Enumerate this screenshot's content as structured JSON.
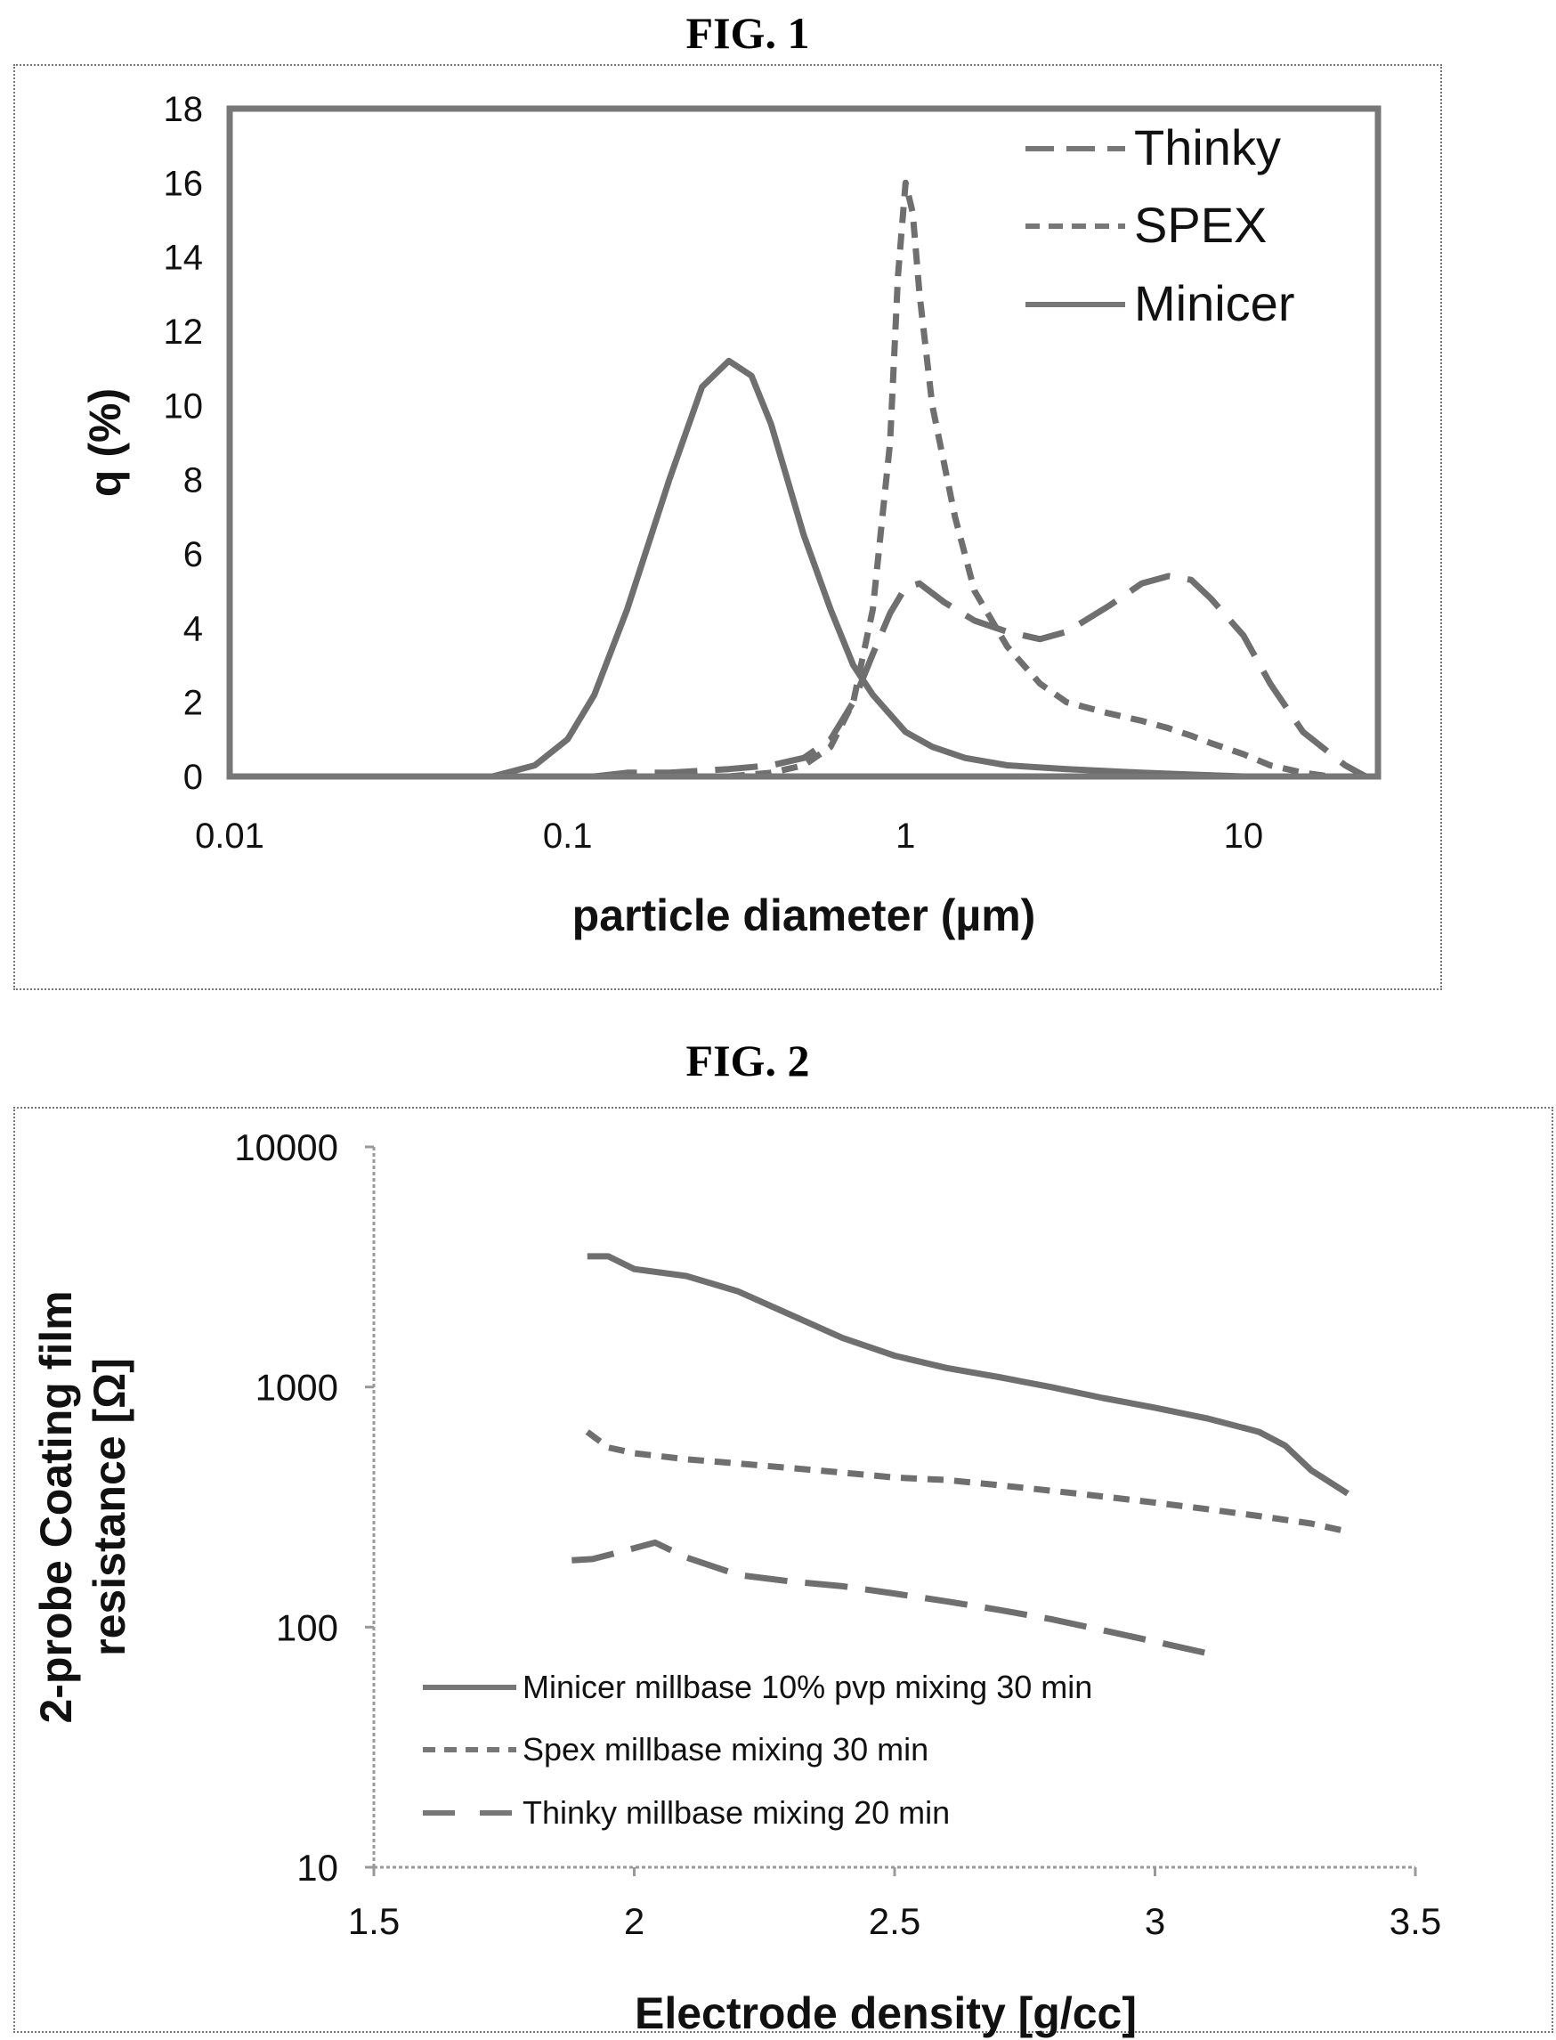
{
  "chart_data": [
    {
      "type": "line",
      "title": "FIG. 1",
      "xlabel": "particle diameter (µm)",
      "ylabel": "q (%)",
      "xscale": "log",
      "xlim": [
        0.01,
        25
      ],
      "ylim": [
        0,
        18
      ],
      "x_ticks": [
        "0.01",
        "0.1",
        "1",
        "10"
      ],
      "y_ticks": [
        "0",
        "2",
        "4",
        "6",
        "8",
        "10",
        "12",
        "14",
        "16",
        "18"
      ],
      "legend": "top-right",
      "series": [
        {
          "name": "Thinky",
          "style": "long-dash",
          "x": [
            0.12,
            0.15,
            0.2,
            0.3,
            0.4,
            0.5,
            0.6,
            0.7,
            0.8,
            0.9,
            1.0,
            1.1,
            1.3,
            1.6,
            2.0,
            2.5,
            3.0,
            4.0,
            5.0,
            6.0,
            7.0,
            8.0,
            10.0,
            12.0,
            15.0,
            20.0,
            23.0
          ],
          "y": [
            0.0,
            0.1,
            0.1,
            0.2,
            0.3,
            0.5,
            1.0,
            2.0,
            3.3,
            4.4,
            5.1,
            5.2,
            4.7,
            4.2,
            3.9,
            3.7,
            3.9,
            4.6,
            5.2,
            5.4,
            5.3,
            4.8,
            3.8,
            2.5,
            1.2,
            0.3,
            0.0
          ]
        },
        {
          "name": "SPEX",
          "style": "short-dash",
          "x": [
            0.3,
            0.4,
            0.5,
            0.6,
            0.7,
            0.8,
            0.9,
            0.95,
            1.0,
            1.05,
            1.1,
            1.2,
            1.4,
            1.6,
            2.0,
            2.5,
            3.0,
            4.0,
            5.0,
            6.0,
            7.0,
            8.0,
            10.0,
            12.0,
            15.0,
            18.0
          ],
          "y": [
            0.0,
            0.1,
            0.3,
            0.8,
            2.0,
            4.5,
            9.0,
            13.5,
            16.0,
            15.2,
            13.0,
            10.0,
            7.0,
            5.0,
            3.5,
            2.5,
            2.0,
            1.7,
            1.5,
            1.3,
            1.1,
            0.9,
            0.6,
            0.3,
            0.1,
            0.0
          ]
        },
        {
          "name": "Minicer",
          "style": "solid",
          "x": [
            0.06,
            0.08,
            0.1,
            0.12,
            0.15,
            0.2,
            0.25,
            0.3,
            0.35,
            0.4,
            0.5,
            0.6,
            0.7,
            0.8,
            1.0,
            1.2,
            1.5,
            2.0,
            3.0,
            5.0,
            7.0,
            10.0
          ],
          "y": [
            0.0,
            0.3,
            1.0,
            2.2,
            4.5,
            8.0,
            10.5,
            11.2,
            10.8,
            9.5,
            6.5,
            4.5,
            3.0,
            2.2,
            1.2,
            0.8,
            0.5,
            0.3,
            0.2,
            0.1,
            0.05,
            0.0
          ]
        }
      ]
    },
    {
      "type": "line",
      "title": "FIG. 2",
      "xlabel": "Electrode density [g/cc]",
      "ylabel": "2-probe Coating film resistance [Ω]",
      "ylabel_lines": [
        "2-probe Coating film",
        "resistance [Ω]"
      ],
      "yscale": "log",
      "xlim": [
        1.5,
        3.5
      ],
      "ylim": [
        10,
        10000
      ],
      "x_ticks": [
        "1.5",
        "2",
        "2.5",
        "3",
        "3.5"
      ],
      "y_ticks": [
        "10",
        "100",
        "1000",
        "10000"
      ],
      "legend": "lower-left",
      "series": [
        {
          "name": "Minicer millbase 10% pvp mixing 30 min",
          "style": "solid",
          "x": [
            1.91,
            1.95,
            2.0,
            2.1,
            2.2,
            2.3,
            2.4,
            2.5,
            2.6,
            2.7,
            2.8,
            2.9,
            3.0,
            3.1,
            3.2,
            3.25,
            3.3,
            3.37
          ],
          "y": [
            3500,
            3500,
            3100,
            2900,
            2500,
            2000,
            1600,
            1350,
            1200,
            1100,
            1000,
            900,
            820,
            740,
            650,
            570,
            450,
            360
          ]
        },
        {
          "name": "Spex millbase mixing 30 min",
          "style": "short-dash",
          "x": [
            1.91,
            1.95,
            2.0,
            2.1,
            2.2,
            2.3,
            2.4,
            2.5,
            2.6,
            2.7,
            2.8,
            2.9,
            3.0,
            3.1,
            3.2,
            3.3,
            3.37
          ],
          "y": [
            650,
            560,
            530,
            500,
            480,
            460,
            440,
            420,
            410,
            390,
            370,
            350,
            330,
            310,
            290,
            270,
            250
          ]
        },
        {
          "name": "Thinky millbase mixing 20 min",
          "style": "long-dash",
          "x": [
            1.88,
            1.92,
            1.97,
            2.04,
            2.1,
            2.2,
            2.3,
            2.4,
            2.5,
            2.6,
            2.7,
            2.8,
            2.9,
            3.0,
            3.11
          ],
          "y": [
            190,
            192,
            205,
            225,
            195,
            165,
            155,
            148,
            138,
            128,
            118,
            108,
            97,
            87,
            77
          ]
        }
      ]
    }
  ]
}
